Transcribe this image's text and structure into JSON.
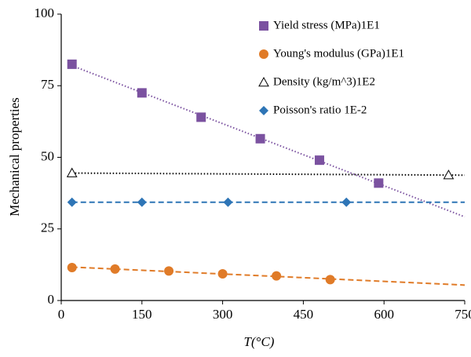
{
  "chart_data": {
    "type": "scatter",
    "xlabel": "T(°C)",
    "ylabel": "Mechanical properties",
    "xlim": [
      0,
      750
    ],
    "xticks": [
      0,
      150,
      300,
      450,
      600,
      750
    ],
    "ylim": [
      0,
      100
    ],
    "yticks": [
      0,
      25,
      50,
      75,
      100
    ],
    "legend": "upper right",
    "series": [
      {
        "name": "Yield stress (MPa)1E1",
        "color": "#7b52a0",
        "marker": "square",
        "trendline": "dotted",
        "x": [
          20,
          150,
          260,
          370,
          480,
          590
        ],
        "values": [
          82.5,
          72.5,
          64,
          56.5,
          49,
          41
        ]
      },
      {
        "name": "Young's modulus (GPa)1E1",
        "color": "#e07b28",
        "marker": "circle",
        "trendline": "dashed",
        "x": [
          20,
          100,
          200,
          300,
          400,
          500
        ],
        "values": [
          11.5,
          11,
          10.3,
          9.3,
          8.6,
          7.3
        ]
      },
      {
        "name": "Density (kg/m^3)1E2",
        "color": "#000000",
        "marker": "triangle",
        "trendline": "dotted",
        "x": [
          20,
          720
        ],
        "values": [
          44.5,
          43.8
        ]
      },
      {
        "name": "Poisson's ratio 1E-2",
        "color": "#2e75b6",
        "marker": "diamond",
        "trendline": "dashed",
        "x": [
          20,
          150,
          310,
          530
        ],
        "values": [
          34.3,
          34.3,
          34.3,
          34.3
        ]
      }
    ]
  }
}
